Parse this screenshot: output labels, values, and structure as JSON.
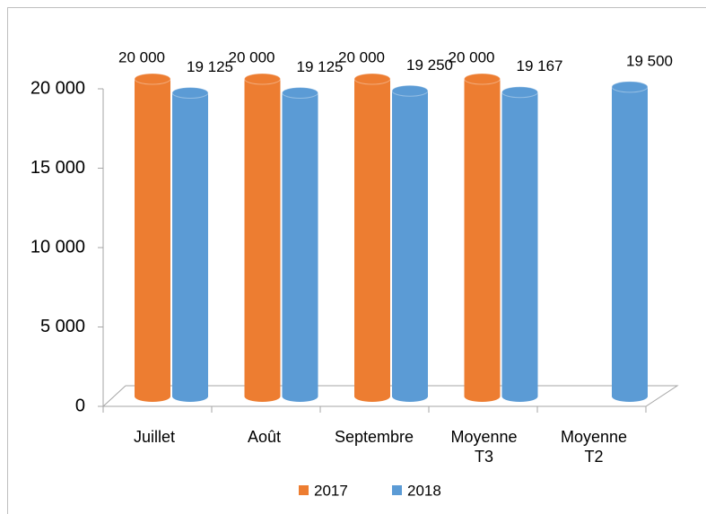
{
  "chart_data": {
    "type": "bar",
    "categories": [
      "Juillet",
      "Août",
      "Septembre",
      "Moyenne T3",
      "Moyenne T2"
    ],
    "series": [
      {
        "name": "2017",
        "color": "#ed7d31",
        "values": [
          20000,
          20000,
          20000,
          20000,
          null
        ],
        "value_labels": [
          "20 000",
          "20 000",
          "20 000",
          "20 000",
          null
        ]
      },
      {
        "name": "2018",
        "color": "#5b9bd5",
        "values": [
          19125,
          19125,
          19250,
          19167,
          19500
        ],
        "value_labels": [
          "19 125",
          "19 125",
          "19 250",
          "19 167",
          "19 500"
        ]
      }
    ],
    "ylim": [
      0,
      20000
    ],
    "yticks": [
      0,
      {
        "value": 5000,
        "label": "5 000"
      },
      {
        "value": 10000,
        "label": "10 000"
      },
      {
        "value": 15000,
        "label": "15 000"
      },
      {
        "value": 20000,
        "label": "20 000"
      }
    ],
    "legend": "bottom"
  }
}
